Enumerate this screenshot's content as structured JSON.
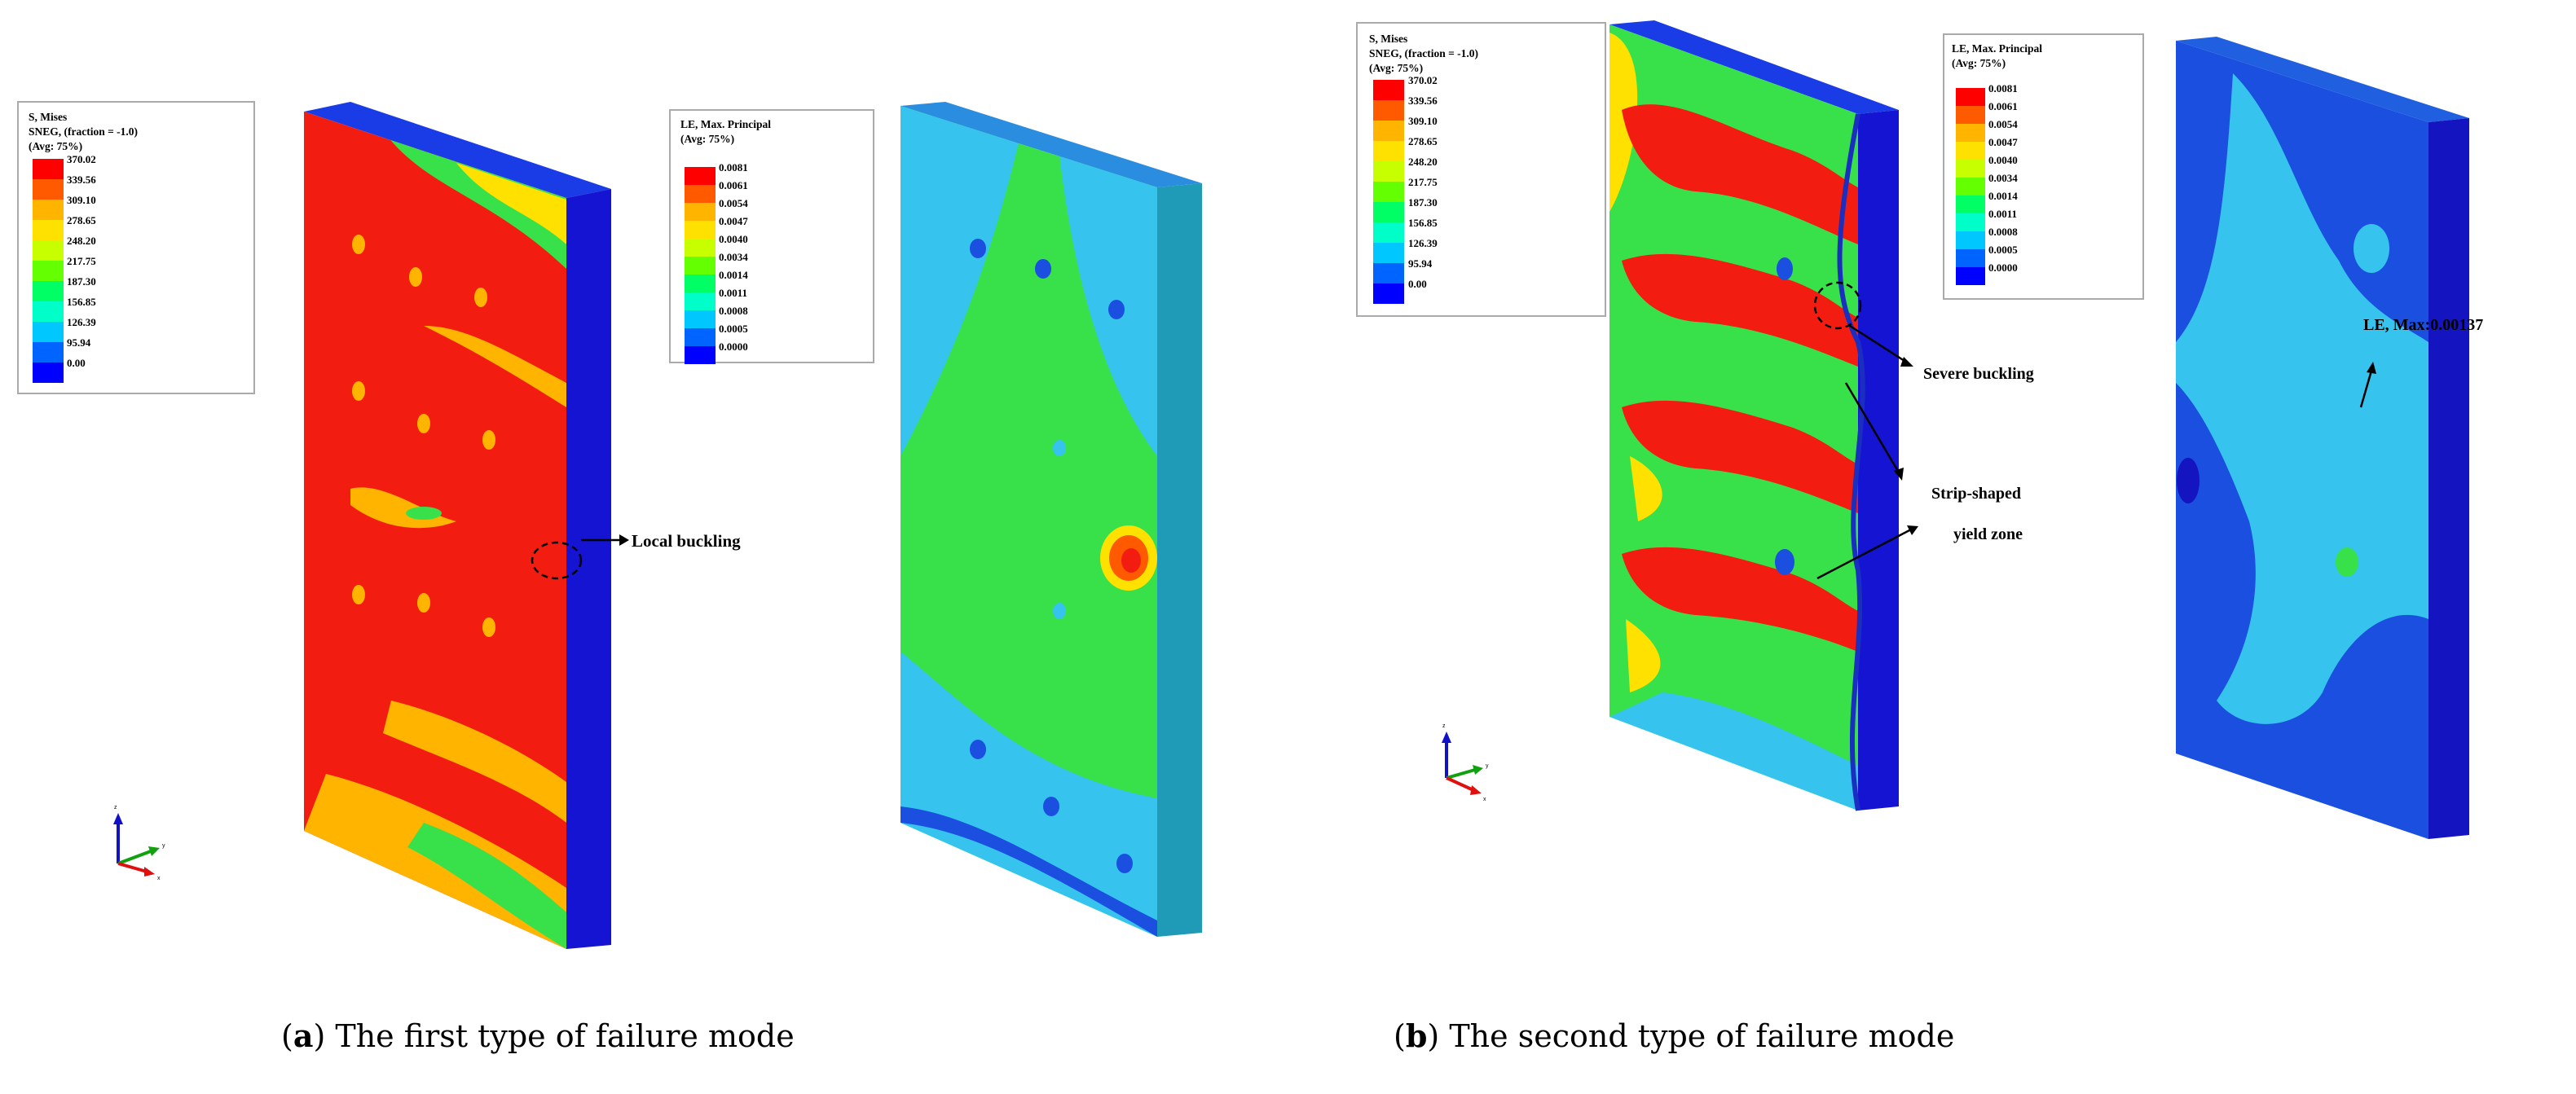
{
  "panel_a": {
    "stress_legend": {
      "title_lines": [
        "S, Mises",
        "SNEG, (fraction = -1.0)",
        "(Avg: 75%)"
      ],
      "values": [
        "370.02",
        "339.56",
        "309.10",
        "278.65",
        "248.20",
        "217.75",
        "187.30",
        "156.85",
        "126.39",
        "95.94",
        "0.00"
      ]
    },
    "strain_legend": {
      "title_lines": [
        "LE, Max. Principal",
        "(Avg: 75%)"
      ],
      "values": [
        "0.0081",
        "0.0061",
        "0.0054",
        "0.0047",
        "0.0040",
        "0.0034",
        "0.0014",
        "0.0011",
        "0.0008",
        "0.0005",
        "0.0000"
      ]
    },
    "annotation_local_buckling": "Local buckling",
    "caption_letter": "a",
    "caption_text": " The first type of failure mode"
  },
  "panel_b": {
    "stress_legend": {
      "title_lines": [
        "S, Mises",
        "SNEG, (fraction = -1.0)",
        "(Avg: 75%)"
      ],
      "values": [
        "370.02",
        "339.56",
        "309.10",
        "278.65",
        "248.20",
        "217.75",
        "187.30",
        "156.85",
        "126.39",
        "95.94",
        "0.00"
      ]
    },
    "strain_legend": {
      "title_lines": [
        "LE, Max. Principal",
        "(Avg: 75%)"
      ],
      "values": [
        "0.0081",
        "0.0061",
        "0.0054",
        "0.0047",
        "0.0040",
        "0.0034",
        "0.0014",
        "0.0011",
        "0.0008",
        "0.0005",
        "0.0000"
      ]
    },
    "annotation_severe_buckling": "Severe buckling",
    "annotation_strip_line1": "Strip-shaped",
    "annotation_strip_line2": "yield zone",
    "annotation_le_max": "LE, Max:0.00137",
    "caption_letter": "b",
    "caption_text": " The second type of failure mode"
  },
  "axis_triad": {
    "z": "z",
    "y": "y",
    "x": "x"
  },
  "colors": {
    "contour_scale": [
      "#ff0000",
      "#ff5a00",
      "#ffb400",
      "#ffe100",
      "#c8ff00",
      "#64ff00",
      "#00ff64",
      "#00ffc8",
      "#00c8ff",
      "#0064ff",
      "#0000ff"
    ],
    "red": "#f21d10",
    "green": "#38e04a",
    "cyan": "#36c4ee",
    "blue": "#1a4fe0",
    "deep_blue": "#1010c8"
  }
}
